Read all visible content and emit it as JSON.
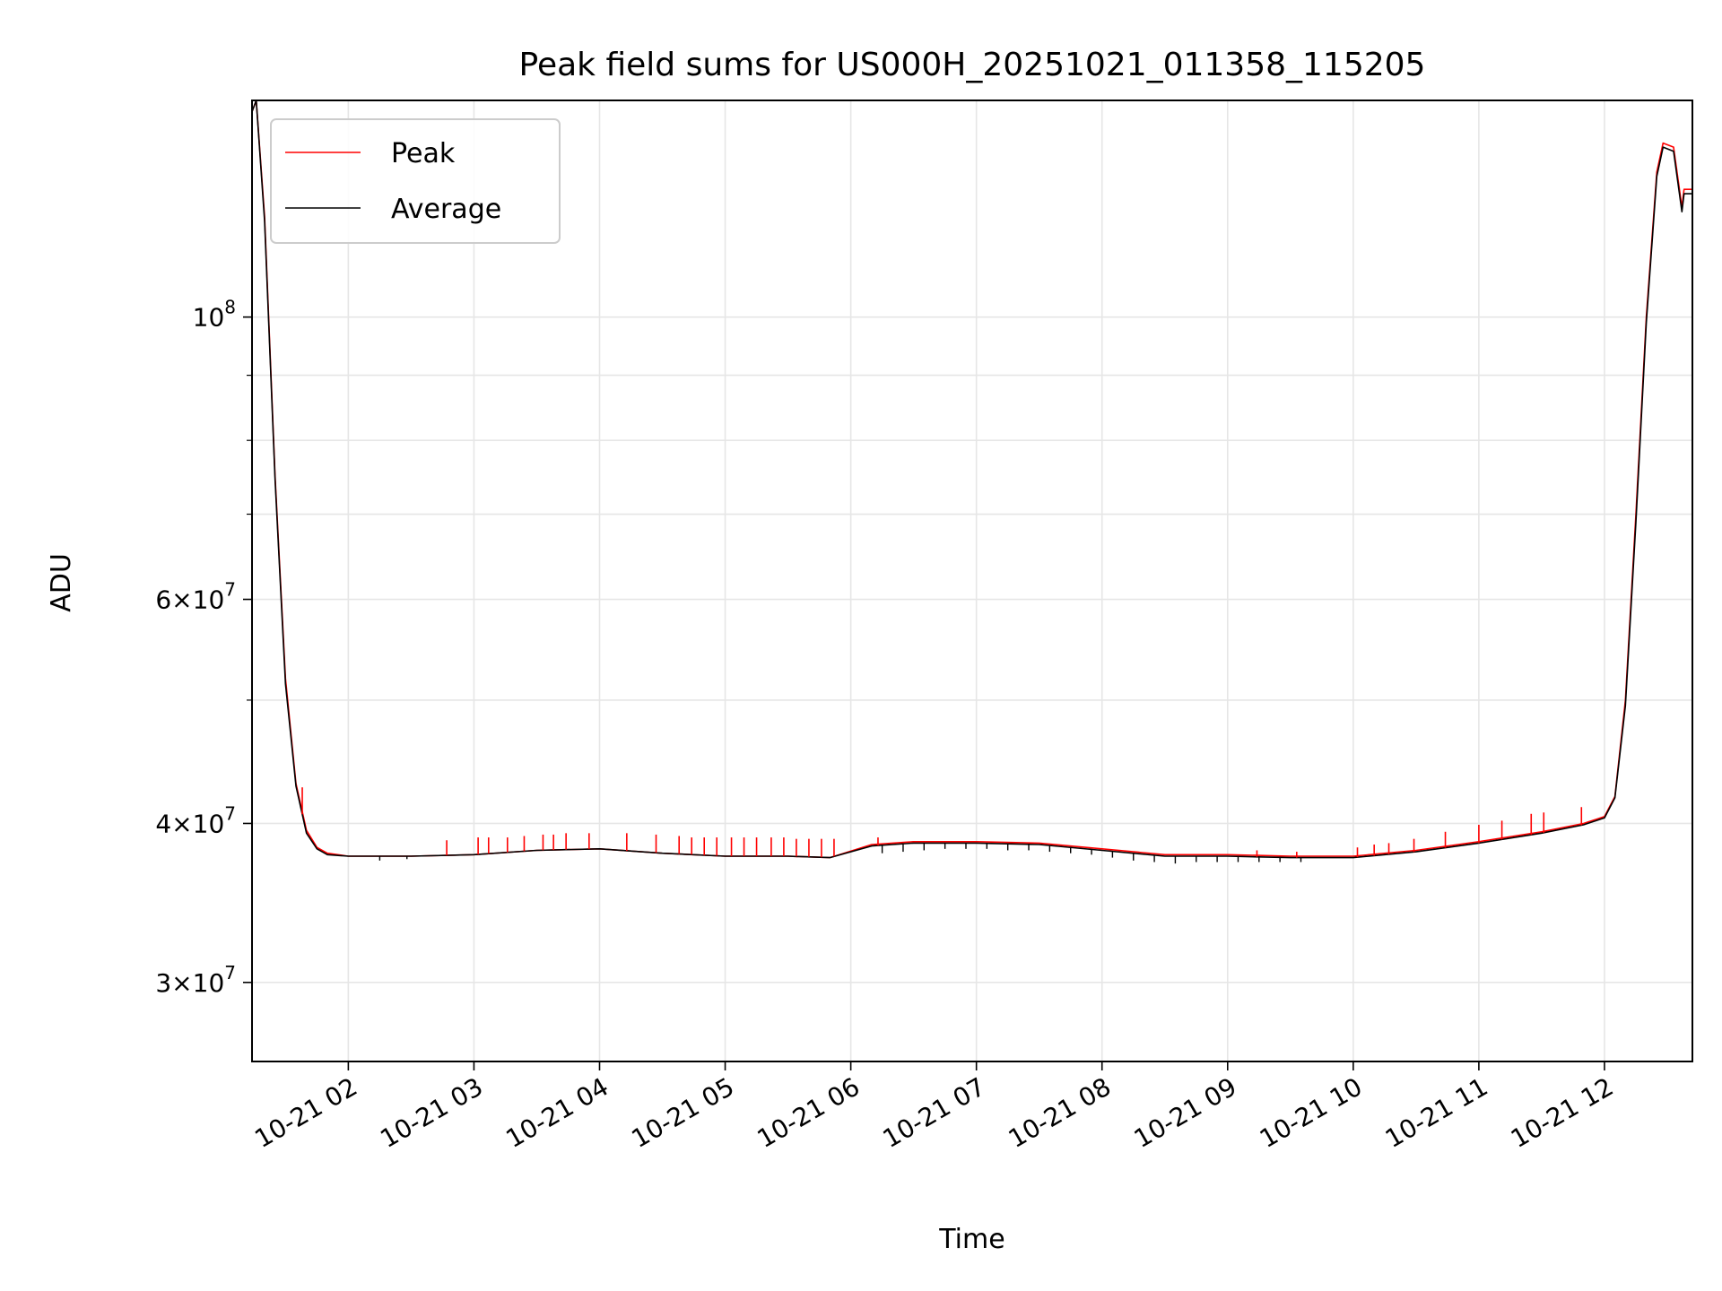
{
  "chart_data": {
    "type": "line",
    "title": "Peak field sums for US000H_20251021_011358_115205",
    "xlabel": "Time",
    "ylabel": "ADU",
    "y_scale": "log",
    "xlim": [
      "2025-10-21 01:14",
      "2025-10-21 12:42"
    ],
    "ylim": [
      26000000,
      148000000
    ],
    "grid": true,
    "legend_position": "top-left",
    "x_ticks": [
      {
        "time": "2025-10-21 02:00",
        "label": "10-21 02"
      },
      {
        "time": "2025-10-21 03:00",
        "label": "10-21 03"
      },
      {
        "time": "2025-10-21 04:00",
        "label": "10-21 04"
      },
      {
        "time": "2025-10-21 05:00",
        "label": "10-21 05"
      },
      {
        "time": "2025-10-21 06:00",
        "label": "10-21 06"
      },
      {
        "time": "2025-10-21 07:00",
        "label": "10-21 07"
      },
      {
        "time": "2025-10-21 08:00",
        "label": "10-21 08"
      },
      {
        "time": "2025-10-21 09:00",
        "label": "10-21 09"
      },
      {
        "time": "2025-10-21 10:00",
        "label": "10-21 10"
      },
      {
        "time": "2025-10-21 11:00",
        "label": "10-21 11"
      },
      {
        "time": "2025-10-21 12:00",
        "label": "10-21 12"
      }
    ],
    "y_ticks": [
      {
        "value": 30000000,
        "mant": "3",
        "exp": "7"
      },
      {
        "value": 40000000,
        "mant": "4",
        "exp": "7"
      },
      {
        "value": 60000000,
        "mant": "6",
        "exp": "7"
      },
      {
        "value": 100000000,
        "mant": "",
        "exp": "8"
      }
    ],
    "y_minor_ticks": [
      50000000,
      70000000,
      80000000,
      90000000
    ],
    "series": [
      {
        "name": "Peak",
        "color": "#ff0000",
        "x": [
          "2025-10-21 01:14",
          "2025-10-21 01:16",
          "2025-10-21 01:20",
          "2025-10-21 01:25",
          "2025-10-21 01:30",
          "2025-10-21 01:35",
          "2025-10-21 01:40",
          "2025-10-21 01:45",
          "2025-10-21 01:50",
          "2025-10-21 02:00",
          "2025-10-21 02:30",
          "2025-10-21 03:00",
          "2025-10-21 03:30",
          "2025-10-21 04:00",
          "2025-10-21 04:30",
          "2025-10-21 05:00",
          "2025-10-21 05:30",
          "2025-10-21 05:50",
          "2025-10-21 06:10",
          "2025-10-21 06:30",
          "2025-10-21 07:00",
          "2025-10-21 07:30",
          "2025-10-21 08:00",
          "2025-10-21 08:30",
          "2025-10-21 09:00",
          "2025-10-21 09:30",
          "2025-10-21 10:00",
          "2025-10-21 10:30",
          "2025-10-21 11:00",
          "2025-10-21 11:30",
          "2025-10-21 11:50",
          "2025-10-21 12:00",
          "2025-10-21 12:05",
          "2025-10-21 12:10",
          "2025-10-21 12:15",
          "2025-10-21 12:20",
          "2025-10-21 12:25",
          "2025-10-21 12:28",
          "2025-10-21 12:33",
          "2025-10-21 12:37",
          "2025-10-21 12:38",
          "2025-10-21 12:42"
        ],
        "y": [
          145000000,
          148000000,
          120000000,
          75000000,
          52000000,
          43000000,
          39500000,
          38300000,
          37900000,
          37700000,
          37700000,
          37800000,
          38100000,
          38200000,
          37900000,
          37700000,
          37700000,
          37600000,
          38500000,
          38700000,
          38700000,
          38600000,
          38200000,
          37800000,
          37800000,
          37700000,
          37700000,
          38100000,
          38700000,
          39400000,
          40000000,
          40500000,
          42000000,
          50000000,
          70000000,
          100000000,
          130000000,
          137000000,
          136000000,
          122000000,
          126000000,
          126000000
        ]
      },
      {
        "name": "Average",
        "color": "#000000",
        "x": [
          "2025-10-21 01:14",
          "2025-10-21 01:16",
          "2025-10-21 01:20",
          "2025-10-21 01:25",
          "2025-10-21 01:30",
          "2025-10-21 01:35",
          "2025-10-21 01:40",
          "2025-10-21 01:45",
          "2025-10-21 01:50",
          "2025-10-21 02:00",
          "2025-10-21 02:30",
          "2025-10-21 03:00",
          "2025-10-21 03:30",
          "2025-10-21 04:00",
          "2025-10-21 04:30",
          "2025-10-21 05:00",
          "2025-10-21 05:30",
          "2025-10-21 05:50",
          "2025-10-21 06:10",
          "2025-10-21 06:30",
          "2025-10-21 07:00",
          "2025-10-21 07:30",
          "2025-10-21 08:00",
          "2025-10-21 08:30",
          "2025-10-21 09:00",
          "2025-10-21 09:30",
          "2025-10-21 10:00",
          "2025-10-21 10:30",
          "2025-10-21 11:00",
          "2025-10-21 11:30",
          "2025-10-21 11:50",
          "2025-10-21 12:00",
          "2025-10-21 12:05",
          "2025-10-21 12:10",
          "2025-10-21 12:15",
          "2025-10-21 12:20",
          "2025-10-21 12:25",
          "2025-10-21 12:28",
          "2025-10-21 12:33",
          "2025-10-21 12:37",
          "2025-10-21 12:38",
          "2025-10-21 12:42"
        ],
        "y": [
          145000000,
          148000000,
          119000000,
          74500000,
          51500000,
          42800000,
          39300000,
          38200000,
          37800000,
          37700000,
          37700000,
          37800000,
          38100000,
          38200000,
          37900000,
          37700000,
          37700000,
          37600000,
          38400000,
          38600000,
          38600000,
          38500000,
          38100000,
          37700000,
          37700000,
          37600000,
          37600000,
          38000000,
          38600000,
          39300000,
          39900000,
          40400000,
          41900000,
          49500000,
          69000000,
          99000000,
          129000000,
          136000000,
          135000000,
          121000000,
          125000000,
          125000000
        ]
      }
    ],
    "peak_spikes": {
      "series": "Peak",
      "x": [
        "2025-10-21 01:38",
        "2025-10-21 02:47",
        "2025-10-21 03:02",
        "2025-10-21 03:07",
        "2025-10-21 03:16",
        "2025-10-21 03:24",
        "2025-10-21 03:33",
        "2025-10-21 03:38",
        "2025-10-21 03:44",
        "2025-10-21 03:55",
        "2025-10-21 04:13",
        "2025-10-21 04:27",
        "2025-10-21 04:38",
        "2025-10-21 04:44",
        "2025-10-21 04:50",
        "2025-10-21 04:56",
        "2025-10-21 05:03",
        "2025-10-21 05:09",
        "2025-10-21 05:15",
        "2025-10-21 05:22",
        "2025-10-21 05:28",
        "2025-10-21 05:34",
        "2025-10-21 05:40",
        "2025-10-21 05:46",
        "2025-10-21 05:52",
        "2025-10-21 06:13",
        "2025-10-21 09:14",
        "2025-10-21 09:33",
        "2025-10-21 10:02",
        "2025-10-21 10:10",
        "2025-10-21 10:17",
        "2025-10-21 10:29",
        "2025-10-21 10:44",
        "2025-10-21 11:00",
        "2025-10-21 11:11",
        "2025-10-21 11:25",
        "2025-10-21 11:31",
        "2025-10-21 11:49"
      ],
      "y": [
        42700000,
        38800000,
        39000000,
        39000000,
        39000000,
        39100000,
        39200000,
        39200000,
        39300000,
        39300000,
        39300000,
        39200000,
        39100000,
        39000000,
        39000000,
        39000000,
        39000000,
        39000000,
        39000000,
        39000000,
        39000000,
        38900000,
        38900000,
        38900000,
        38900000,
        39000000,
        38100000,
        38000000,
        38300000,
        38500000,
        38600000,
        38900000,
        39400000,
        39900000,
        40200000,
        40700000,
        40800000,
        41200000
      ]
    },
    "average_dips": {
      "series": "Average",
      "x": [
        "2025-10-21 02:15",
        "2025-10-21 02:28",
        "2025-10-21 06:15",
        "2025-10-21 06:25",
        "2025-10-21 06:35",
        "2025-10-21 06:45",
        "2025-10-21 06:55",
        "2025-10-21 07:05",
        "2025-10-21 07:15",
        "2025-10-21 07:25",
        "2025-10-21 07:35",
        "2025-10-21 07:45",
        "2025-10-21 07:55",
        "2025-10-21 08:05",
        "2025-10-21 08:15",
        "2025-10-21 08:25",
        "2025-10-21 08:35",
        "2025-10-21 08:45",
        "2025-10-21 08:55",
        "2025-10-21 09:05",
        "2025-10-21 09:15",
        "2025-10-21 09:25",
        "2025-10-21 09:35"
      ],
      "y": [
        37400000,
        37500000,
        37900000,
        38000000,
        38100000,
        38200000,
        38200000,
        38200000,
        38100000,
        38100000,
        38000000,
        37900000,
        37800000,
        37600000,
        37400000,
        37300000,
        37200000,
        37300000,
        37300000,
        37300000,
        37300000,
        37300000,
        37300000
      ]
    }
  }
}
